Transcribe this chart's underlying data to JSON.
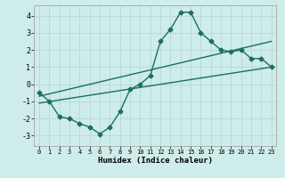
{
  "xlabel": "Humidex (Indice chaleur)",
  "xlim": [
    -0.5,
    23.5
  ],
  "ylim": [
    -3.6,
    4.6
  ],
  "xticks": [
    0,
    1,
    2,
    3,
    4,
    5,
    6,
    7,
    8,
    9,
    10,
    11,
    12,
    13,
    14,
    15,
    16,
    17,
    18,
    19,
    20,
    21,
    22,
    23
  ],
  "yticks": [
    -3,
    -2,
    -1,
    0,
    1,
    2,
    3,
    4
  ],
  "bg_color": "#ceecea",
  "grid_color": "#b8d8d5",
  "line_color": "#1a6e64",
  "line1_x": [
    0,
    1,
    2,
    3,
    4,
    5,
    6,
    7,
    8,
    9,
    10,
    11,
    12,
    13,
    14,
    15,
    16,
    17,
    18,
    19,
    20,
    21,
    22,
    23
  ],
  "line1_y": [
    -0.5,
    -1.0,
    -1.9,
    -2.0,
    -2.3,
    -2.5,
    -2.9,
    -2.5,
    -1.6,
    -0.3,
    0.0,
    0.5,
    2.5,
    3.2,
    4.2,
    4.2,
    3.0,
    2.5,
    2.0,
    1.9,
    2.0,
    1.5,
    1.5,
    1.0
  ],
  "line2_x": [
    0,
    23
  ],
  "line2_y": [
    -1.1,
    1.0
  ],
  "line3_x": [
    0,
    23
  ],
  "line3_y": [
    -0.7,
    2.5
  ],
  "marker": "D",
  "marker_size": 2.5,
  "line_width": 1.0
}
